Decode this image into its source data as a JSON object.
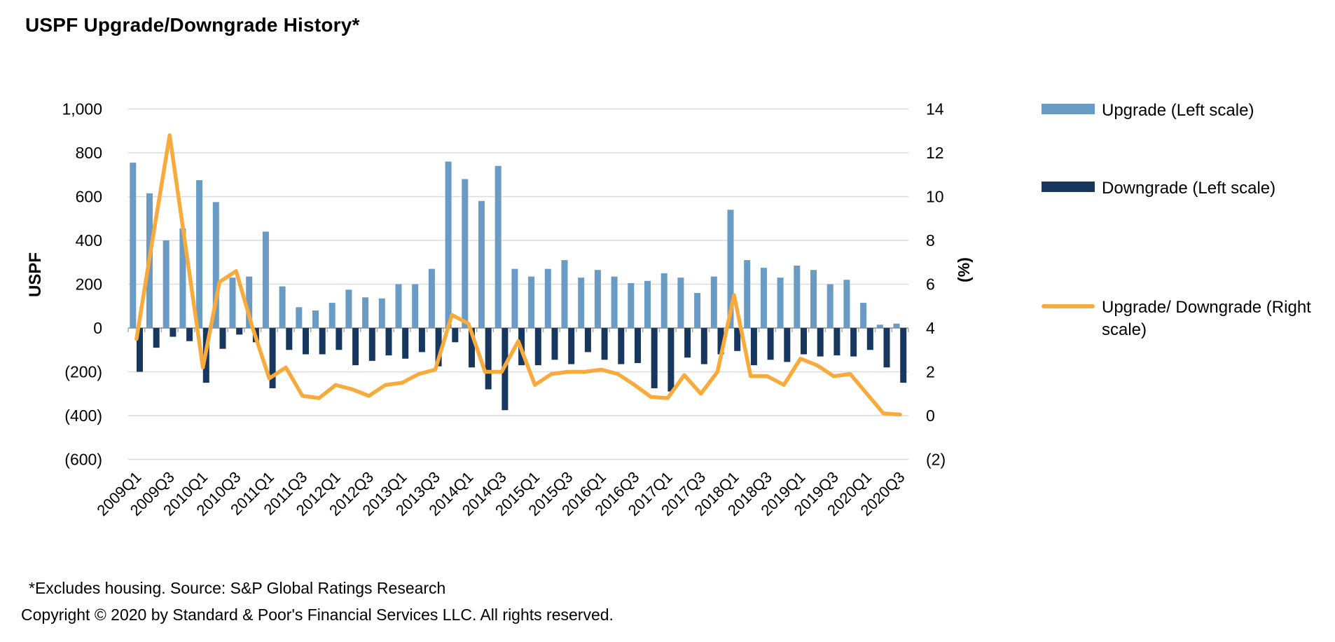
{
  "page": {
    "title": "USPF Upgrade/Downgrade History*"
  },
  "chart_data": {
    "type": "combo",
    "title": "USPF Upgrade/Downgrade History*",
    "grid": true,
    "legend_position": "right",
    "x_tick_every": 2,
    "categories": [
      "2009Q1",
      "2009Q2",
      "2009Q3",
      "2009Q4",
      "2010Q1",
      "2010Q2",
      "2010Q3",
      "2010Q4",
      "2011Q1",
      "2011Q2",
      "2011Q3",
      "2011Q4",
      "2012Q1",
      "2012Q2",
      "2012Q3",
      "2012Q4",
      "2013Q1",
      "2013Q2",
      "2013Q3",
      "2013Q4",
      "2014Q1",
      "2014Q2",
      "2014Q3",
      "2014Q4",
      "2015Q1",
      "2015Q2",
      "2015Q3",
      "2015Q4",
      "2016Q1",
      "2016Q2",
      "2016Q3",
      "2016Q4",
      "2017Q1",
      "2017Q2",
      "2017Q3",
      "2017Q4",
      "2018Q1",
      "2018Q2",
      "2018Q3",
      "2018Q4",
      "2019Q1",
      "2019Q2",
      "2019Q3",
      "2019Q4",
      "2020Q1",
      "2020Q2",
      "2020Q3"
    ],
    "left_axis": {
      "label": "USPF",
      "min": -600,
      "max": 1000,
      "step": 200,
      "tick_labels": [
        "1,000",
        "800",
        "600",
        "400",
        "200",
        "0",
        "(200)",
        "(400)",
        "(600)"
      ]
    },
    "right_axis": {
      "label": "(%)",
      "min": -2,
      "max": 14,
      "step": 2,
      "tick_labels": [
        "14",
        "12",
        "10",
        "8",
        "6",
        "4",
        "2",
        "0",
        "(2)"
      ]
    },
    "series": [
      {
        "name": "Upgrade (Left scale)",
        "type": "bar",
        "axis": "left",
        "color": "#6A9BC4",
        "values": [
          755,
          615,
          400,
          455,
          675,
          575,
          230,
          235,
          440,
          190,
          95,
          80,
          115,
          175,
          140,
          135,
          200,
          200,
          270,
          760,
          680,
          580,
          740,
          270,
          235,
          270,
          310,
          230,
          265,
          235,
          205,
          215,
          250,
          230,
          160,
          235,
          540,
          310,
          275,
          230,
          285,
          265,
          200,
          220,
          115,
          15,
          20
        ]
      },
      {
        "name": "Downgrade (Left scale)",
        "type": "bar",
        "axis": "left",
        "color": "#17375E",
        "values": [
          -200,
          -90,
          -40,
          -60,
          -250,
          -95,
          -30,
          -65,
          -275,
          -100,
          -120,
          -120,
          -100,
          -170,
          -150,
          -125,
          -140,
          -110,
          -175,
          -65,
          -180,
          -280,
          -375,
          -170,
          -170,
          -145,
          -165,
          -110,
          -145,
          -165,
          -160,
          -275,
          -290,
          -135,
          -165,
          -120,
          -105,
          -170,
          -145,
          -155,
          -120,
          -130,
          -125,
          -130,
          -100,
          -180,
          -250
        ]
      },
      {
        "name": "Upgrade/ Downgrade (Right scale)",
        "type": "line",
        "axis": "right",
        "color": "#F8AB3C",
        "values": [
          3.5,
          8.2,
          12.8,
          7.5,
          2.2,
          6.1,
          6.6,
          4.0,
          1.7,
          2.2,
          0.9,
          0.8,
          1.4,
          1.2,
          0.9,
          1.4,
          1.5,
          1.9,
          2.1,
          4.6,
          4.2,
          2.0,
          2.0,
          3.4,
          1.4,
          1.9,
          2.0,
          2.0,
          2.1,
          1.9,
          1.4,
          0.85,
          0.8,
          1.85,
          1.0,
          2.0,
          5.5,
          1.8,
          1.8,
          1.4,
          2.6,
          2.3,
          1.8,
          1.9,
          1.0,
          0.1,
          0.05
        ]
      }
    ],
    "colors": {
      "gridline": "#DCDCDC",
      "zero_axis": "#A6A6A6",
      "tick_mark": "#A6A6A6"
    }
  },
  "footnotes": {
    "line1": "*Excludes housing. Source: S&P Global Ratings Research",
    "line2": "Copyright © 2020 by Standard & Poor's Financial Services LLC. All rights reserved."
  }
}
